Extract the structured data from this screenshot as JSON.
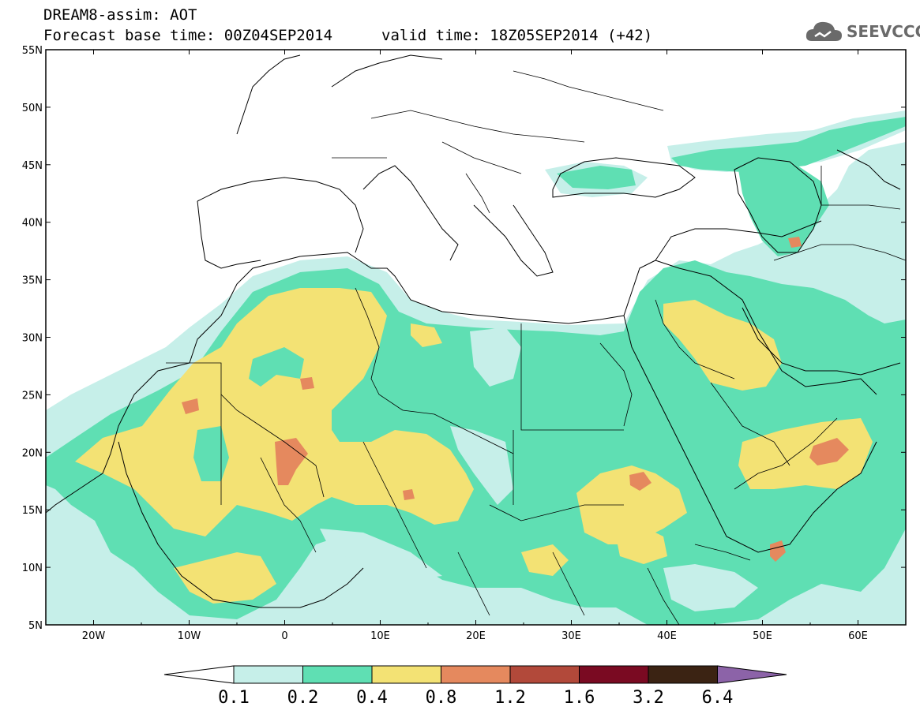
{
  "header": {
    "line1": "DREAM8-assim: AOT",
    "line2": "Forecast base time: 00Z04SEP2014",
    "line3": "valid time: 18Z05SEP2014 (+42)",
    "logo_text": "SEEVCCC"
  },
  "map": {
    "lon_range": [
      -25,
      65
    ],
    "lat_range": [
      5,
      55
    ],
    "lat_labels": [
      "5N",
      "10N",
      "15N",
      "20N",
      "25N",
      "30N",
      "35N",
      "40N",
      "45N",
      "50N",
      "55N"
    ],
    "lon_labels": [
      "20W",
      "10W",
      "0",
      "10E",
      "20E",
      "30E",
      "40E",
      "50E",
      "60E"
    ],
    "colors": {
      "c1": "#c6efe9",
      "c2": "#5fdfb3",
      "c3": "#f3e274",
      "c4": "#e5895e",
      "c5": "#b2493a",
      "c6": "#7a0a22",
      "c7": "#3b2313",
      "c8": "#8c63a8"
    }
  },
  "colorbar": {
    "labels": [
      "0.1",
      "0.2",
      "0.4",
      "0.8",
      "1.2",
      "1.6",
      "3.2",
      "6.4"
    ],
    "colors": [
      "#c6efe9",
      "#5fdfb3",
      "#f3e274",
      "#e5895e",
      "#b2493a",
      "#7a0a22",
      "#3b2313"
    ],
    "over_color": "#8c63a8"
  }
}
